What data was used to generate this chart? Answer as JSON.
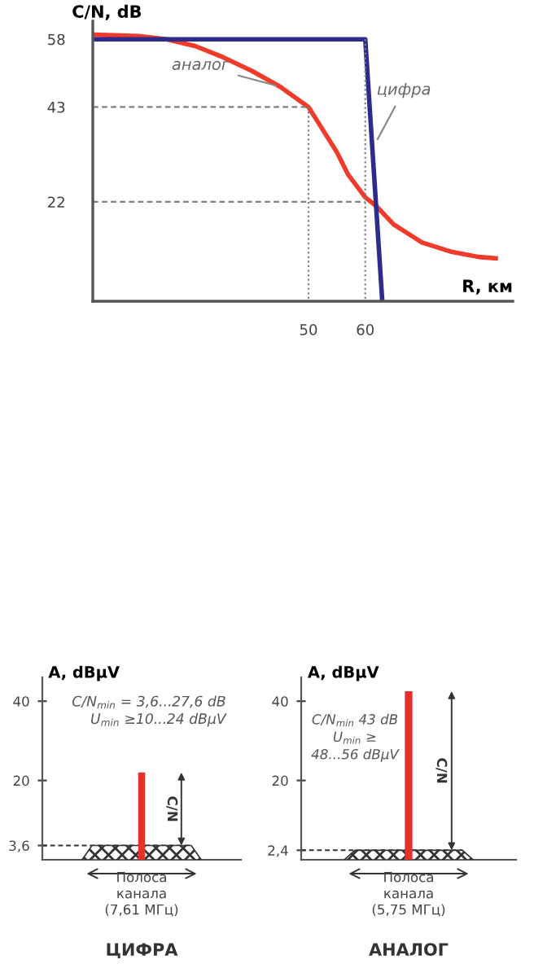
{
  "chart_data": [
    {
      "type": "line",
      "xlabel": "R, км",
      "ylabel": "C/N, dB",
      "xlim": [
        12,
        86
      ],
      "ylim": [
        0,
        62
      ],
      "xticks": [
        50,
        60
      ],
      "yticks": [
        22,
        43,
        58
      ],
      "series": [
        {
          "name": "аналог",
          "color": "#f03a2a",
          "x": [
            12,
            20,
            25,
            30,
            35,
            40,
            45,
            50,
            52,
            55,
            57,
            60,
            62,
            65,
            70,
            75,
            80,
            83
          ],
          "values": [
            59,
            58.7,
            58,
            56.5,
            54,
            51,
            47.5,
            43,
            39,
            33,
            28,
            23,
            21,
            17,
            13,
            11,
            9.8,
            9.5
          ]
        },
        {
          "name": "цифра",
          "color": "#2c2c8c",
          "x": [
            12,
            60,
            63
          ],
          "values": [
            58,
            58,
            0
          ]
        },
        {
          "color": "#7f7f7f",
          "line_style": "dashed",
          "x": [
            12,
            50
          ],
          "values": [
            43,
            43
          ]
        },
        {
          "color": "#7f7f7f",
          "line_style": "dotted",
          "x": [
            50,
            50
          ],
          "values": [
            43,
            0
          ]
        },
        {
          "color": "#7f7f7f",
          "line_style": "dashed",
          "x": [
            12,
            60
          ],
          "values": [
            22,
            22
          ]
        },
        {
          "color": "#7f7f7f",
          "line_style": "dotted",
          "x": [
            60,
            60
          ],
          "values": [
            58,
            0
          ]
        }
      ]
    },
    {
      "type": "bar",
      "title": "ЦИФРА",
      "ylabel": "A, dBμV",
      "categories": [
        null
      ],
      "values": [
        22
      ],
      "color": "#e8302a",
      "ylim": [
        0,
        46
      ],
      "yticks": [
        {
          "value": 3.6,
          "label": "3,6"
        },
        20,
        40
      ],
      "ref_lines": [
        {
          "axis": "y",
          "value": 3.6,
          "line_style": "dashed",
          "color": "#333333"
        }
      ],
      "bands": [
        {
          "axis": "y",
          "from": 0,
          "to": 3.6,
          "label": "Полоса\nканала\n(7,61 МГц)"
        }
      ],
      "annotations": [
        "C/N$_{min}$ = 3,6...27,6 dB",
        "U$_{min}$ ≥10...24 dBμV",
        "C/N"
      ]
    },
    {
      "type": "bar",
      "title": "АНАЛОГ",
      "ylabel": "A, dBμV",
      "categories": [
        null
      ],
      "values": [
        42.5
      ],
      "color": "#e8302a",
      "ylim": [
        0,
        46
      ],
      "yticks": [
        {
          "value": 2.4,
          "label": "2,4"
        },
        20,
        40
      ],
      "ref_lines": [
        {
          "axis": "y",
          "value": 2.4,
          "line_style": "dashed",
          "color": "#333333"
        }
      ],
      "bands": [
        {
          "axis": "y",
          "from": 0,
          "to": 2.4,
          "label": "Полоса\nканала\n(5,75 МГц)"
        }
      ],
      "annotations": [
        "C/N$_{min}$ 43 dB",
        "U$_{min}$ ≥",
        "48...56 dBμV",
        "C/N"
      ]
    }
  ]
}
